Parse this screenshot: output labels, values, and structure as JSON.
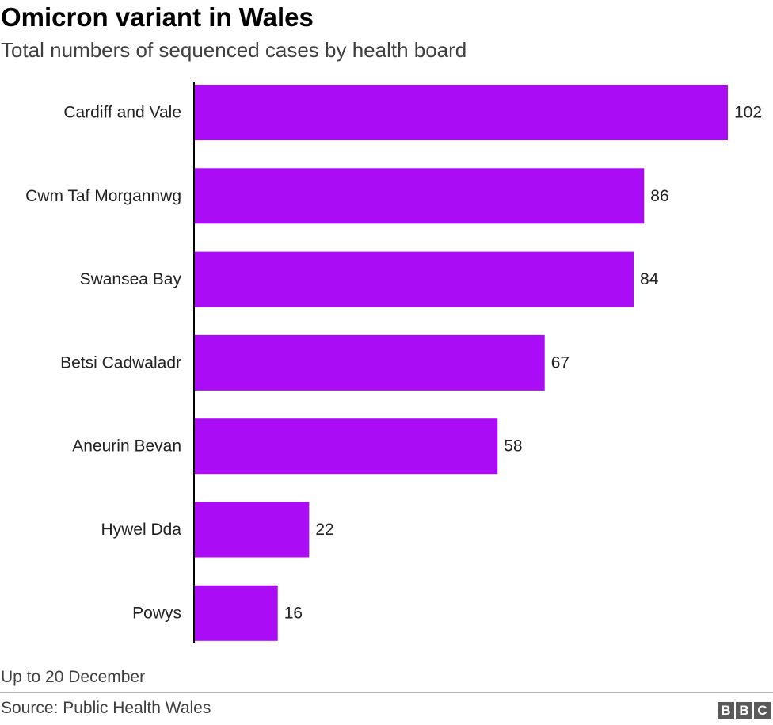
{
  "chart_data": {
    "type": "bar",
    "orientation": "horizontal",
    "title": "Omicron variant in Wales",
    "subtitle": "Total numbers of sequenced cases by health board",
    "categories": [
      "Cardiff and Vale",
      "Cwm Taf Morgannwg",
      "Swansea Bay",
      "Betsi Cadwaladr",
      "Aneurin Bevan",
      "Hywel Dda",
      "Powys"
    ],
    "values": [
      102,
      86,
      84,
      67,
      58,
      22,
      16
    ],
    "xlim": [
      0,
      102
    ],
    "grid": false,
    "legend": "none",
    "bar_color": "#aa0df5",
    "data_labels": true
  },
  "footer": {
    "note": "Up to 20 December",
    "source": "Source: Public Health Wales",
    "logo_letters": [
      "B",
      "B",
      "C"
    ]
  }
}
